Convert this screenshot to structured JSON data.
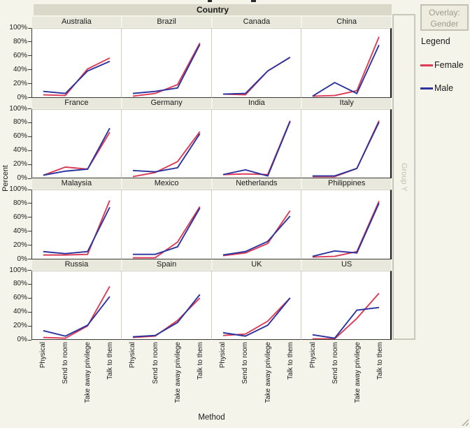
{
  "window": {
    "background": "#f5f4ea"
  },
  "country_band": {
    "label": "Country"
  },
  "overlay_box": {
    "line1": "Overlay:",
    "line2": "Gender"
  },
  "legend": {
    "title": "Legend",
    "entries": [
      {
        "label": "Female",
        "color": "#dc3a55"
      },
      {
        "label": "Male",
        "color": "#2a339e"
      }
    ]
  },
  "group_y": {
    "label": "Group Y"
  },
  "axes": {
    "y_axis_label": "Percent",
    "x_axis_label": "Method",
    "y_tick_labels": [
      "100%",
      "80%",
      "60%",
      "40%",
      "20%",
      "0%"
    ]
  },
  "chart_data": {
    "type": "line",
    "trellis": "4x4 small multiples by Country",
    "categories": [
      "Physical",
      "Send to room",
      "Take away privilege",
      "Talk to them"
    ],
    "ylim": [
      0,
      100
    ],
    "y_unit": "percent",
    "series_names": [
      "Female",
      "Male"
    ],
    "series_colors": {
      "Female": "#dc3a55",
      "Male": "#2a339e"
    },
    "panels": [
      {
        "country": "Australia",
        "female": [
          3,
          2,
          41,
          57
        ],
        "male": [
          8,
          5,
          38,
          52
        ]
      },
      {
        "country": "Brazil",
        "female": [
          1,
          5,
          18,
          79
        ],
        "male": [
          5,
          8,
          13,
          77
        ]
      },
      {
        "country": "Canada",
        "female": [
          4,
          3,
          38,
          58
        ],
        "male": [
          4,
          5,
          38,
          58
        ]
      },
      {
        "country": "China",
        "female": [
          1,
          2,
          9,
          88
        ],
        "male": [
          1,
          21,
          5,
          76
        ]
      },
      {
        "country": "France",
        "female": [
          4,
          16,
          13,
          67
        ],
        "male": [
          4,
          10,
          13,
          73
        ]
      },
      {
        "country": "Germany",
        "female": [
          2,
          8,
          24,
          68
        ],
        "male": [
          11,
          9,
          15,
          65
        ]
      },
      {
        "country": "India",
        "female": [
          5,
          6,
          5,
          84
        ],
        "male": [
          5,
          12,
          3,
          83
        ]
      },
      {
        "country": "Italy",
        "female": [
          2,
          2,
          14,
          84
        ],
        "male": [
          3,
          3,
          14,
          82
        ]
      },
      {
        "country": "Malaysia",
        "female": [
          5,
          5,
          6,
          85
        ],
        "male": [
          10,
          7,
          10,
          75
        ]
      },
      {
        "country": "Mexico",
        "female": [
          1,
          1,
          24,
          76
        ],
        "male": [
          6,
          6,
          17,
          74
        ]
      },
      {
        "country": "Netherlands",
        "female": [
          4,
          8,
          22,
          70
        ],
        "male": [
          5,
          10,
          25,
          62
        ]
      },
      {
        "country": "Philippines",
        "female": [
          2,
          3,
          10,
          84
        ],
        "male": [
          3,
          11,
          8,
          81
        ]
      },
      {
        "country": "Russia",
        "female": [
          3,
          2,
          20,
          78
        ],
        "male": [
          13,
          5,
          21,
          63
        ]
      },
      {
        "country": "Spain",
        "female": [
          3,
          5,
          28,
          61
        ],
        "male": [
          4,
          6,
          25,
          66
        ]
      },
      {
        "country": "UK",
        "female": [
          6,
          8,
          27,
          61
        ],
        "male": [
          10,
          5,
          21,
          61
        ]
      },
      {
        "country": "US",
        "female": [
          1,
          1,
          31,
          68
        ],
        "male": [
          7,
          2,
          43,
          47
        ]
      }
    ]
  }
}
